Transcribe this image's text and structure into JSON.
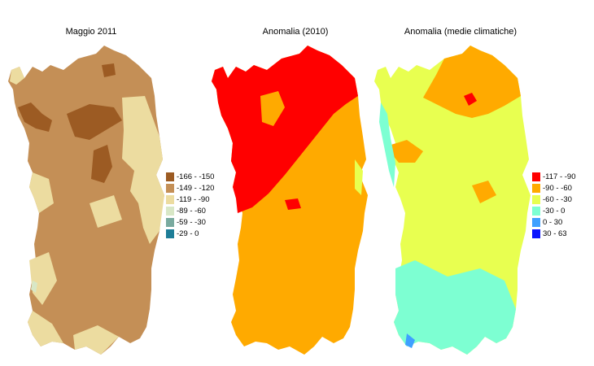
{
  "panels": [
    {
      "title": "Maggio 2011"
    },
    {
      "title": "Anomalia (2010)"
    },
    {
      "title": "Anomalia (medie climatiche)"
    }
  ],
  "legend_left": {
    "items": [
      {
        "label": "-166 - -150",
        "color": "#9c5b23"
      },
      {
        "label": "-149 - -120",
        "color": "#c48f56"
      },
      {
        "label": "-119 - -90",
        "color": "#ecdca0"
      },
      {
        "label": "-89 - -60",
        "color": "#d8e7c6"
      },
      {
        "label": "-59 - -30",
        "color": "#79aa9f"
      },
      {
        "label": "-29 - 0",
        "color": "#1d7d97"
      }
    ]
  },
  "legend_right": {
    "items": [
      {
        "label": "-117 - -90",
        "color": "#ff0000"
      },
      {
        "label": "-90 - -60",
        "color": "#ffaa00"
      },
      {
        "label": "-60 - -30",
        "color": "#e8ff50"
      },
      {
        "label": "-30 - 0",
        "color": "#7dffd2"
      },
      {
        "label": "0 - 30",
        "color": "#3fa0ff"
      },
      {
        "label": "30 - 63",
        "color": "#0a14ff"
      }
    ]
  }
}
